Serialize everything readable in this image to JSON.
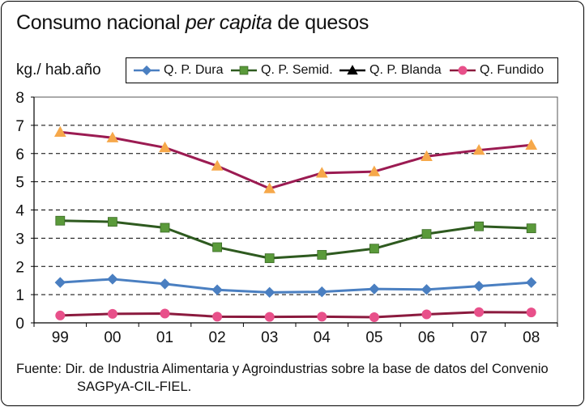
{
  "title": {
    "part1": "Consumo nacional ",
    "part2": "per capita",
    "part3": " de quesos"
  },
  "ylabel": "kg./ hab.año",
  "source": {
    "line1": "Fuente: Dir. de Industria Alimentaria y Agroindustrias sobre la base de datos del Convenio",
    "line2": "SAGPyA-CIL-FIEL."
  },
  "chart_data": {
    "type": "line",
    "categories": [
      "99",
      "00",
      "01",
      "02",
      "03",
      "04",
      "05",
      "06",
      "07",
      "08"
    ],
    "ylim": [
      0,
      8
    ],
    "yticks": [
      0,
      1,
      2,
      3,
      4,
      5,
      6,
      7,
      8
    ],
    "grid": true,
    "legend_position": "top",
    "series": [
      {
        "name": "Q. P. Dura",
        "color": "#4a7fc1",
        "marker": "diamond",
        "marker_color": "#4a7fc1",
        "values": [
          1.43,
          1.55,
          1.38,
          1.17,
          1.08,
          1.1,
          1.2,
          1.18,
          1.3,
          1.43
        ]
      },
      {
        "name": "Q. P. Semid.",
        "color": "#2e5a1f",
        "marker": "square",
        "marker_color": "#5a9a3a",
        "values": [
          3.62,
          3.58,
          3.37,
          2.68,
          2.29,
          2.41,
          2.63,
          3.15,
          3.42,
          3.35
        ]
      },
      {
        "name": "Q. P. Blanda",
        "color": "#9b1b52",
        "marker": "triangle",
        "marker_color": "#f6a84a",
        "values": [
          6.76,
          6.56,
          6.21,
          5.56,
          4.76,
          5.31,
          5.36,
          5.9,
          6.12,
          6.3
        ]
      },
      {
        "name": "Q. Fundido",
        "color": "#8b1a3e",
        "marker": "circle",
        "marker_color": "#e8508a",
        "values": [
          0.26,
          0.32,
          0.33,
          0.22,
          0.21,
          0.22,
          0.2,
          0.3,
          0.38,
          0.37
        ]
      }
    ]
  }
}
